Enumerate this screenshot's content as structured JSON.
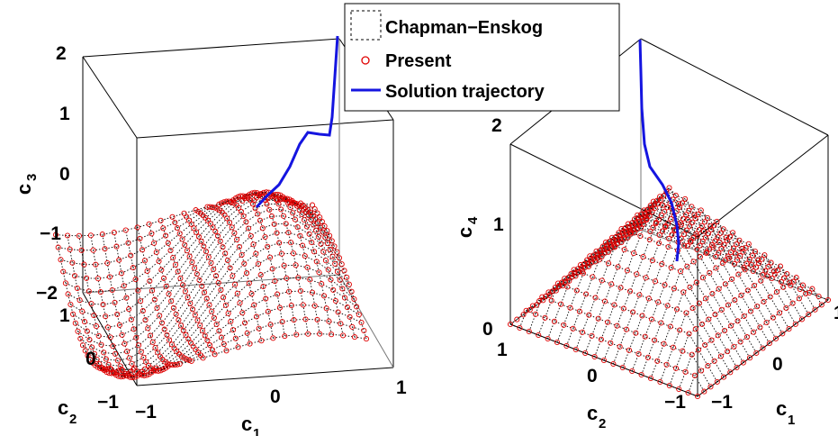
{
  "chart_data": [
    {
      "type": "surface3d",
      "xlabel": "c",
      "xlabel_sub": "1",
      "ylabel": "c",
      "ylabel_sub": "2",
      "zlabel": "c",
      "zlabel_sub": "3",
      "xlim": [
        -1,
        1
      ],
      "ylim": [
        -1,
        1
      ],
      "zlim": [
        -2,
        2
      ],
      "x_ticks": [
        "−1",
        "0",
        "1"
      ],
      "y_ticks": [
        "−1",
        "0",
        "1"
      ],
      "z_ticks": [
        "−2",
        "−1",
        "0",
        "1",
        "2"
      ],
      "surface": "c3 as a wavy function of c1 and c2",
      "trajectory": "starts near c3 = 2 and descends onto the surface",
      "series": [
        {
          "name": "Chapman−Enskog",
          "style": "black dotted mesh"
        },
        {
          "name": "Present",
          "style": "red circle markers"
        },
        {
          "name": "Solution trajectory",
          "style": "blue solid line"
        }
      ],
      "legend_position": "top-center"
    },
    {
      "type": "surface3d",
      "xlabel": "c",
      "xlabel_sub": "1",
      "ylabel": "c",
      "ylabel_sub": "2",
      "zlabel": "c",
      "zlabel_sub": "4",
      "xlim": [
        -1,
        1
      ],
      "ylim": [
        -1,
        1
      ],
      "zlim": [
        0,
        2
      ],
      "x_ticks": [
        "−1",
        "0",
        "1"
      ],
      "y_ticks": [
        "−1",
        "0",
        "1"
      ],
      "z_ticks": [
        "0",
        "1",
        "2"
      ],
      "surface": "c4 as a pyramid-shaped function of c1 and c2 (peak near c4 = 1.5 at the centre, 0 at the edges)",
      "trajectory": "starts near c4 = 2 and descends onto the surface"
    }
  ],
  "legend": {
    "items": [
      {
        "label": "Chapman−Enskog"
      },
      {
        "label": "Present"
      },
      {
        "label": "Solution trajectory"
      }
    ]
  },
  "colors": {
    "chapman_enskog": "#000000",
    "present": "#e00000",
    "trajectory": "#1515e0"
  }
}
